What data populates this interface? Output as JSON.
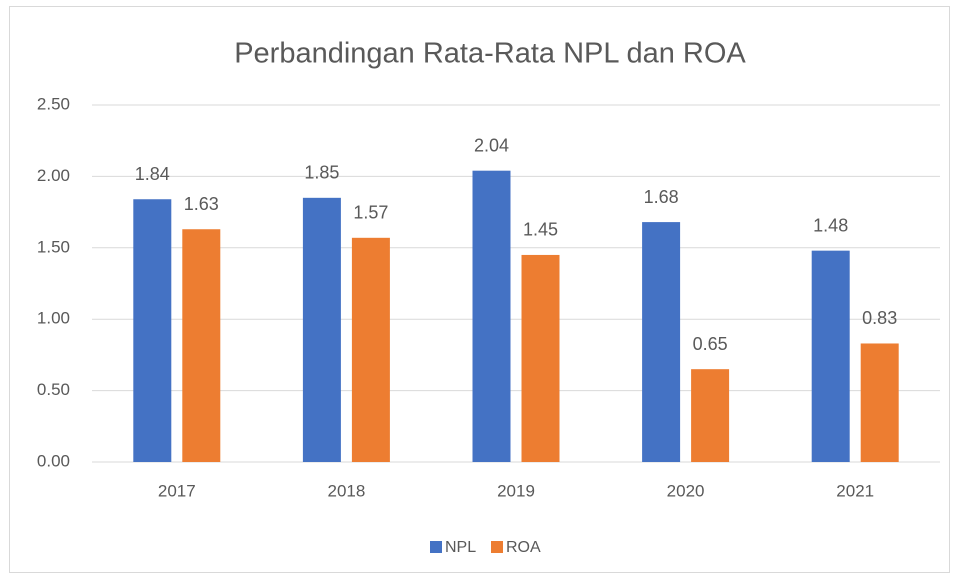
{
  "chart_data": {
    "type": "bar",
    "title": "Perbandingan Rata-Rata NPL dan ROA",
    "categories": [
      "2017",
      "2018",
      "2019",
      "2020",
      "2021"
    ],
    "series": [
      {
        "name": "NPL",
        "color": "#4472c4",
        "values": [
          1.84,
          1.85,
          2.04,
          1.68,
          1.48
        ]
      },
      {
        "name": "ROA",
        "color": "#ed7d31",
        "values": [
          1.63,
          1.57,
          1.45,
          0.65,
          0.83
        ]
      }
    ],
    "ylim": [
      0,
      2.5
    ],
    "yticks": [
      {
        "value": 0,
        "label": "0.00"
      },
      {
        "value": 0.5,
        "label": "0.50"
      },
      {
        "value": 1,
        "label": "1.00"
      },
      {
        "value": 1.5,
        "label": "1.50"
      },
      {
        "value": 2,
        "label": "2.00"
      },
      {
        "value": 2.5,
        "label": "2.50"
      }
    ],
    "grid": true,
    "legend": "bottom"
  }
}
